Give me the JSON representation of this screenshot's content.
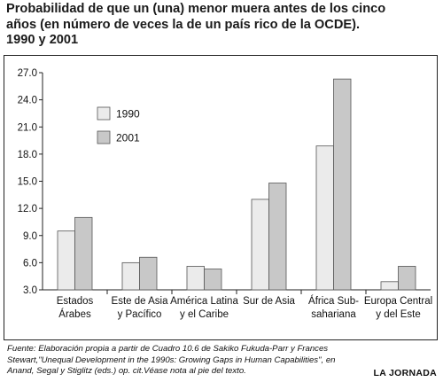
{
  "title": {
    "line1": "Probabilidad de que un (una) menor muera antes de los cinco",
    "line2": "años (en número de veces la de un país rico de la OCDE).",
    "line3": "1990 y 2001"
  },
  "footnote": {
    "line1": "Fuente: Elaboración propia a partir de Cuadro 10.6 de Sakiko Fukuda-Parr y Frances",
    "line2": "Stewart,\"Unequal Development in the 1990s: Growing Gaps in Human Capabilities\", en",
    "line3": "Anand, Segal y Stiglitz (eds.) op. cit.Véase nota al pie del texto."
  },
  "brand": "LA JORNADA",
  "chart_data": {
    "type": "bar",
    "title": "",
    "xlabel": "",
    "ylabel": "",
    "ylim": [
      3.0,
      27.0
    ],
    "yticks": [
      "3.0",
      "6.0",
      "9.0",
      "12.0",
      "15.0",
      "18.0",
      "21.0",
      "24.0",
      "27.0"
    ],
    "grid": false,
    "legend_position": "top-left",
    "categories": [
      [
        "Estados",
        "Árabes"
      ],
      [
        "Este de Asia",
        "y Pacífico"
      ],
      [
        "América Latina",
        "y el Caribe"
      ],
      [
        "Sur de Asia"
      ],
      [
        "África Sub-",
        "sahariana"
      ],
      [
        "Europa Central",
        "y del Este"
      ]
    ],
    "series": [
      {
        "name": "1990",
        "color": "#ebebeb",
        "values": [
          9.5,
          6.0,
          5.6,
          13.0,
          18.9,
          3.9
        ]
      },
      {
        "name": "2001",
        "color": "#c8c8c8",
        "values": [
          11.0,
          6.6,
          5.3,
          14.8,
          26.3,
          5.6
        ]
      }
    ]
  }
}
